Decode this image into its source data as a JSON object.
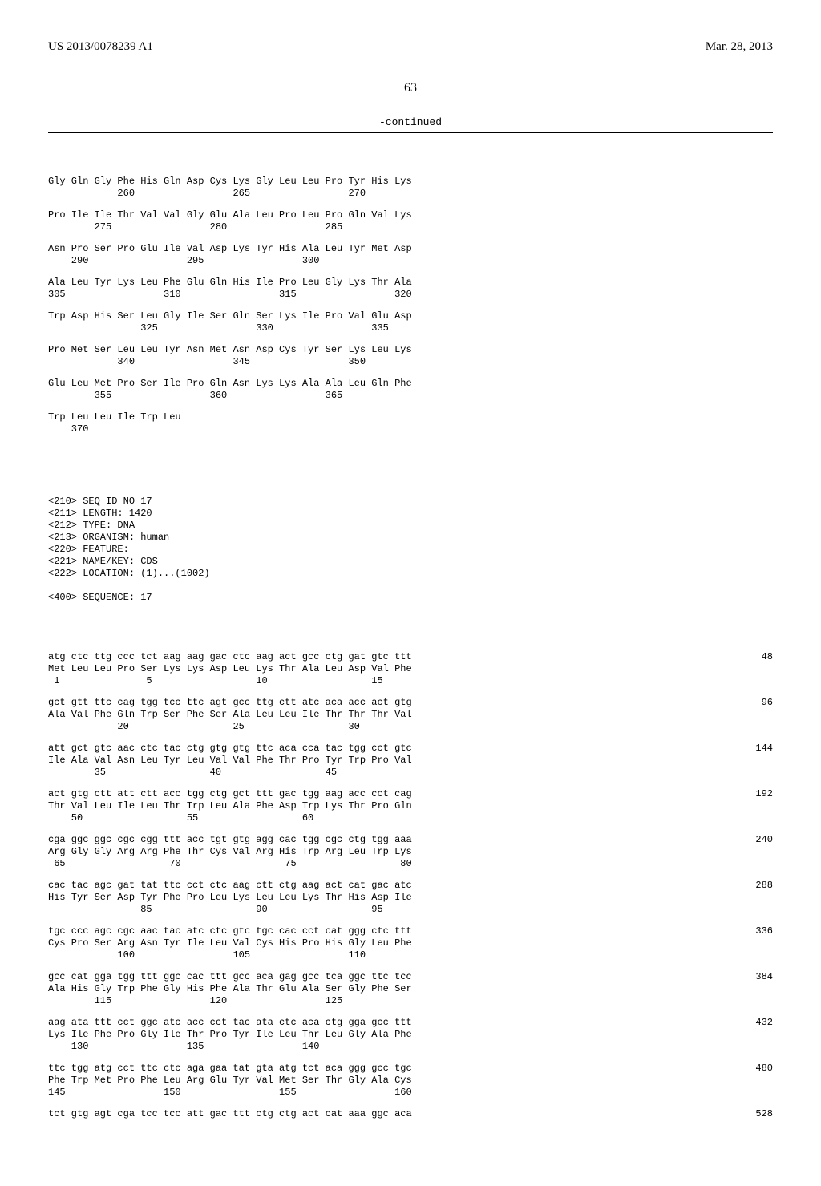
{
  "header": {
    "publication_number": "US 2013/0078239 A1",
    "publication_date": "Mar. 28, 2013"
  },
  "page_number": "63",
  "continued_label": "-continued",
  "protein_blocks": [
    {
      "aa": "Gly Gln Gly Phe His Gln Asp Cys Lys Gly Leu Leu Pro Tyr His Lys",
      "nums": "            260                 265                 270"
    },
    {
      "aa": "Pro Ile Ile Thr Val Val Gly Glu Ala Leu Pro Leu Pro Gln Val Lys",
      "nums": "        275                 280                 285"
    },
    {
      "aa": "Asn Pro Ser Pro Glu Ile Val Asp Lys Tyr His Ala Leu Tyr Met Asp",
      "nums": "    290                 295                 300"
    },
    {
      "aa": "Ala Leu Tyr Lys Leu Phe Glu Gln His Ile Pro Leu Gly Lys Thr Ala",
      "nums": "305                 310                 315                 320"
    },
    {
      "aa": "Trp Asp His Ser Leu Gly Ile Ser Gln Ser Lys Ile Pro Val Glu Asp",
      "nums": "                325                 330                 335"
    },
    {
      "aa": "Pro Met Ser Leu Leu Tyr Asn Met Asn Asp Cys Tyr Ser Lys Leu Lys",
      "nums": "            340                 345                 350"
    },
    {
      "aa": "Glu Leu Met Pro Ser Ile Pro Gln Asn Lys Lys Ala Ala Leu Gln Phe",
      "nums": "        355                 360                 365"
    },
    {
      "aa": "Trp Leu Leu Ile Trp Leu",
      "nums": "    370"
    }
  ],
  "meta": [
    "<210> SEQ ID NO 17",
    "<211> LENGTH: 1420",
    "<212> TYPE: DNA",
    "<213> ORGANISM: human",
    "<220> FEATURE:",
    "<221> NAME/KEY: CDS",
    "<222> LOCATION: (1)...(1002)",
    "",
    "<400> SEQUENCE: 17"
  ],
  "dna_blocks": [
    {
      "dna": "atg ctc ttg ccc tct aag aag gac ctc aag act gcc ctg gat gtc ttt",
      "aa": "Met Leu Leu Pro Ser Lys Lys Asp Leu Lys Thr Ala Leu Asp Val Phe",
      "nums": " 1               5                  10                  15",
      "count": "48"
    },
    {
      "dna": "gct gtt ttc cag tgg tcc ttc agt gcc ttg ctt atc aca acc act gtg",
      "aa": "Ala Val Phe Gln Trp Ser Phe Ser Ala Leu Leu Ile Thr Thr Thr Val",
      "nums": "            20                  25                  30",
      "count": "96"
    },
    {
      "dna": "att gct gtc aac ctc tac ctg gtg gtg ttc aca cca tac tgg cct gtc",
      "aa": "Ile Ala Val Asn Leu Tyr Leu Val Val Phe Thr Pro Tyr Trp Pro Val",
      "nums": "        35                  40                  45",
      "count": "144"
    },
    {
      "dna": "act gtg ctt att ctt acc tgg ctg gct ttt gac tgg aag acc cct cag",
      "aa": "Thr Val Leu Ile Leu Thr Trp Leu Ala Phe Asp Trp Lys Thr Pro Gln",
      "nums": "    50                  55                  60",
      "count": "192"
    },
    {
      "dna": "cga ggc ggc cgc cgg ttt acc tgt gtg agg cac tgg cgc ctg tgg aaa",
      "aa": "Arg Gly Gly Arg Arg Phe Thr Cys Val Arg His Trp Arg Leu Trp Lys",
      "nums": " 65                  70                  75                  80",
      "count": "240"
    },
    {
      "dna": "cac tac agc gat tat ttc cct ctc aag ctt ctg aag act cat gac atc",
      "aa": "His Tyr Ser Asp Tyr Phe Pro Leu Lys Leu Leu Lys Thr His Asp Ile",
      "nums": "                85                  90                  95",
      "count": "288"
    },
    {
      "dna": "tgc ccc agc cgc aac tac atc ctc gtc tgc cac cct cat ggg ctc ttt",
      "aa": "Cys Pro Ser Arg Asn Tyr Ile Leu Val Cys His Pro His Gly Leu Phe",
      "nums": "            100                 105                 110",
      "count": "336"
    },
    {
      "dna": "gcc cat gga tgg ttt ggc cac ttt gcc aca gag gcc tca ggc ttc tcc",
      "aa": "Ala His Gly Trp Phe Gly His Phe Ala Thr Glu Ala Ser Gly Phe Ser",
      "nums": "        115                 120                 125",
      "count": "384"
    },
    {
      "dna": "aag ata ttt cct ggc atc acc cct tac ata ctc aca ctg gga gcc ttt",
      "aa": "Lys Ile Phe Pro Gly Ile Thr Pro Tyr Ile Leu Thr Leu Gly Ala Phe",
      "nums": "    130                 135                 140",
      "count": "432"
    },
    {
      "dna": "ttc tgg atg cct ttc ctc aga gaa tat gta atg tct aca ggg gcc tgc",
      "aa": "Phe Trp Met Pro Phe Leu Arg Glu Tyr Val Met Ser Thr Gly Ala Cys",
      "nums": "145                 150                 155                 160",
      "count": "480"
    },
    {
      "dna": "tct gtg agt cga tcc tcc att gac ttt ctg ctg act cat aaa ggc aca",
      "aa": "",
      "nums": "",
      "count": "528"
    }
  ]
}
